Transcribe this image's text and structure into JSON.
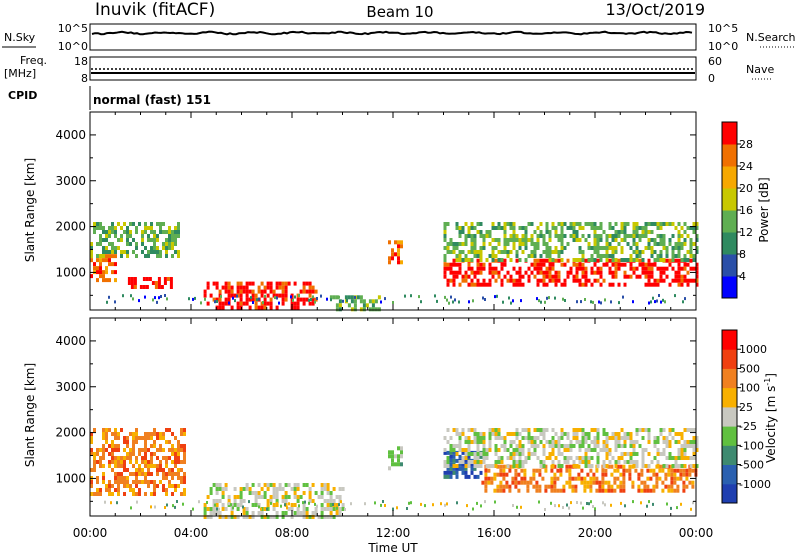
{
  "header": {
    "site": "Inuvik (fitACF)",
    "beam": "Beam 10",
    "date": "13/Oct/2019"
  },
  "strip1": {
    "left_label": "N.Sky",
    "left_ticks": [
      "10^5",
      "10^0"
    ],
    "right_ticks": [
      "10^5",
      "10^0"
    ],
    "right_label": "N.Search"
  },
  "strip2": {
    "left_label_1": "Freq.",
    "left_label_2": "[MHz]",
    "left_ticks": [
      "18",
      "8"
    ],
    "right_ticks": [
      "60",
      "0"
    ],
    "right_label": "Nave"
  },
  "cpid": {
    "label": "CPID",
    "value": "normal (fast) 151"
  },
  "chart_data": [
    {
      "type": "heatmap",
      "title": "",
      "xlabel": "Time UT",
      "ylabel": "Slant Range [km]",
      "ylim": [
        180,
        4500
      ],
      "xlim": [
        0,
        24
      ],
      "x_ticks": [
        "00:00",
        "04:00",
        "08:00",
        "12:00",
        "16:00",
        "20:00",
        "00:00"
      ],
      "y_ticks": [
        1000,
        2000,
        3000,
        4000
      ],
      "colorbar": {
        "label": "Power [dB]",
        "ticks": [
          "4",
          "8",
          "12",
          "16",
          "20",
          "24",
          "28"
        ],
        "colors": [
          "#0000ff",
          "#2a4fa8",
          "#2f8a60",
          "#5fae52",
          "#c8c800",
          "#f6a800",
          "#f07000",
          "#ff0000"
        ]
      },
      "echo_bands": [
        {
          "t_start": 0.0,
          "t_end": 1.0,
          "range_low": 800,
          "range_high": 1400,
          "level": "orange"
        },
        {
          "t_start": 0.0,
          "t_end": 3.5,
          "range_low": 1400,
          "range_high": 2100,
          "level": "green"
        },
        {
          "t_start": 1.5,
          "t_end": 3.2,
          "range_low": 700,
          "range_high": 900,
          "level": "red"
        },
        {
          "t_start": 4.5,
          "t_end": 9.0,
          "range_low": 200,
          "range_high": 800,
          "level": "red"
        },
        {
          "t_start": 9.5,
          "t_end": 11.5,
          "range_low": 200,
          "range_high": 500,
          "level": "green"
        },
        {
          "t_start": 11.8,
          "t_end": 12.3,
          "range_low": 1200,
          "range_high": 1700,
          "level": "orange"
        },
        {
          "t_start": 14.0,
          "t_end": 24.0,
          "range_low": 700,
          "range_high": 1300,
          "level": "red"
        },
        {
          "t_start": 14.0,
          "t_end": 24.0,
          "range_low": 1300,
          "range_high": 2100,
          "level": "green"
        }
      ]
    },
    {
      "type": "heatmap",
      "title": "",
      "xlabel": "Time UT",
      "ylabel": "Slant Range [km]",
      "ylim": [
        180,
        4500
      ],
      "xlim": [
        0,
        24
      ],
      "x_ticks": [
        "00:00",
        "04:00",
        "08:00",
        "12:00",
        "16:00",
        "20:00",
        "00:00"
      ],
      "y_ticks": [
        1000,
        2000,
        3000,
        4000
      ],
      "colorbar": {
        "label": "Velocity [m s",
        "label_sup": "-1",
        "label_end": "]",
        "ticks": [
          "1000",
          "500",
          "100",
          "25",
          "-25",
          "-100",
          "-500",
          "-1000"
        ],
        "colors": [
          "#1f3fb0",
          "#2a60b0",
          "#3e8a70",
          "#60c040",
          "#c8c8c0",
          "#f8b000",
          "#f08020",
          "#f04010",
          "#ff0000"
        ]
      },
      "echo_bands": [
        {
          "t_start": 0.0,
          "t_end": 3.8,
          "range_low": 700,
          "range_high": 2100,
          "level": "orange"
        },
        {
          "t_start": 4.5,
          "t_end": 10.0,
          "range_low": 200,
          "range_high": 900,
          "level": "grey"
        },
        {
          "t_start": 11.8,
          "t_end": 12.3,
          "range_low": 1200,
          "range_high": 1700,
          "level": "green"
        },
        {
          "t_start": 14.0,
          "t_end": 15.5,
          "range_low": 1000,
          "range_high": 1600,
          "level": "blue"
        },
        {
          "t_start": 15.5,
          "t_end": 24.0,
          "range_low": 700,
          "range_high": 1300,
          "level": "orange"
        },
        {
          "t_start": 14.0,
          "t_end": 24.0,
          "range_low": 1300,
          "range_high": 2100,
          "level": "grey"
        }
      ]
    }
  ]
}
